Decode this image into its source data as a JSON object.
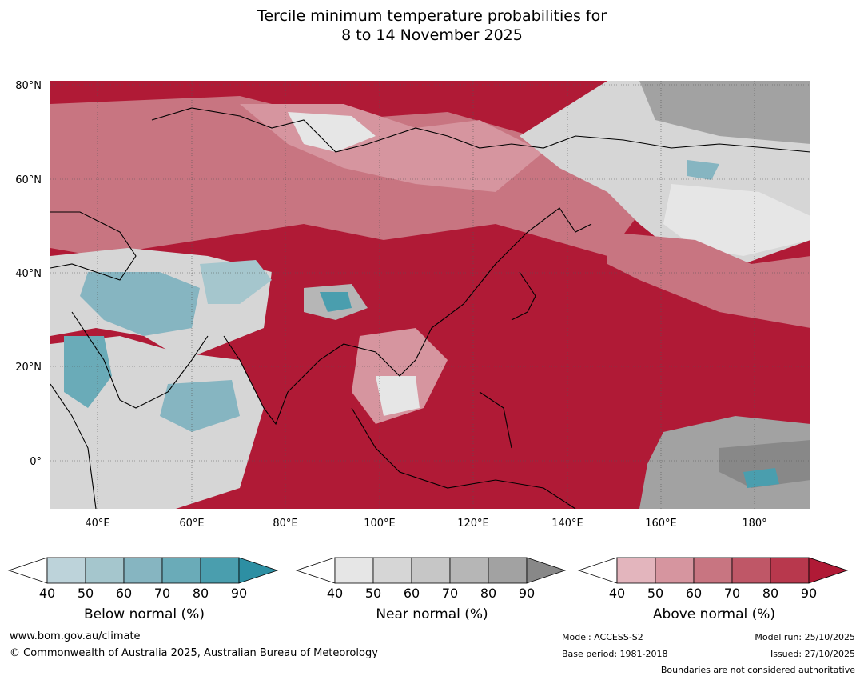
{
  "title": {
    "line1": "Tercile minimum temperature probabilities for",
    "line2": "8 to 14 November 2025"
  },
  "map": {
    "lat_labels": [
      "80°N",
      "60°N",
      "40°N",
      "20°N",
      "0°"
    ],
    "lon_labels": [
      "40°E",
      "60°E",
      "80°E",
      "100°E",
      "120°E",
      "140°E",
      "160°E",
      "180°"
    ],
    "lat_range": [
      -10,
      80
    ],
    "lon_range": [
      30,
      191
    ]
  },
  "colors": {
    "below": [
      "#bdd3da",
      "#a5c6cd",
      "#86b5c1",
      "#6aabb8",
      "#4a9eae",
      "#2d8fa3"
    ],
    "near": [
      "#e6e6e6",
      "#d6d6d6",
      "#c6c6c6",
      "#b6b6b6",
      "#a2a2a2",
      "#888888"
    ],
    "above": [
      "#e3b5bd",
      "#d6959f",
      "#c87581",
      "#bf5767",
      "#b8384d",
      "#b01a36"
    ]
  },
  "legends": [
    {
      "title": "Below normal (%)",
      "ticks": [
        "40",
        "50",
        "60",
        "70",
        "80",
        "90"
      ]
    },
    {
      "title": "Near normal (%)",
      "ticks": [
        "40",
        "50",
        "60",
        "70",
        "80",
        "90"
      ]
    },
    {
      "title": "Above normal (%)",
      "ticks": [
        "40",
        "50",
        "60",
        "70",
        "80",
        "90"
      ]
    }
  ],
  "footer": {
    "website": "www.bom.gov.au/climate",
    "copyright": "© Commonwealth of Australia 2025, Australian Bureau of Meteorology",
    "model": "Model: ACCESS-S2",
    "base_period": "Base period: 1981-2018",
    "model_run": "Model run: 25/10/2025",
    "issued": "Issued: 27/10/2025",
    "boundaries": "Boundaries are not considered authoritative"
  }
}
